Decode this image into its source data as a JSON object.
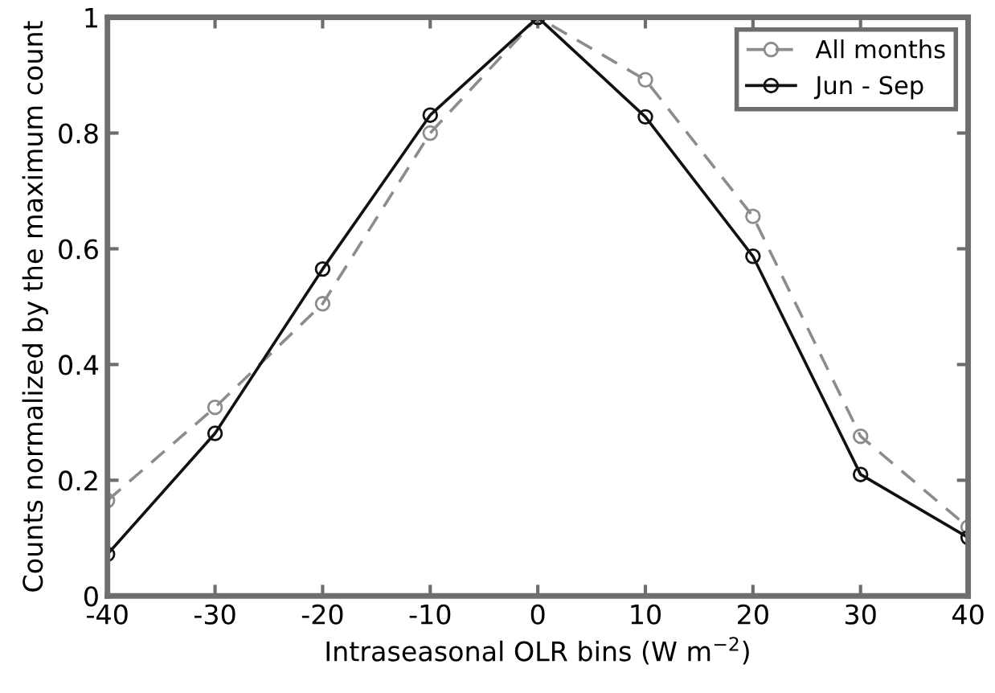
{
  "chart_data": {
    "type": "line",
    "xlabel": "Intraseasonal OLR bins (W m$^{−2}$)",
    "ylabel": "Counts normalized by the maximum count",
    "x": [
      -40,
      -30,
      -20,
      -10,
      0,
      10,
      20,
      30,
      40
    ],
    "series": [
      {
        "name": "All months",
        "color": "#8c8c8c",
        "line_style": "dashed",
        "values": [
          0.165,
          0.326,
          0.505,
          0.8,
          1.0,
          0.892,
          0.656,
          0.276,
          0.119
        ]
      },
      {
        "name": "Jun - Sep",
        "color": "#111111",
        "line_style": "solid",
        "values": [
          0.072,
          0.281,
          0.565,
          0.831,
          1.0,
          0.828,
          0.587,
          0.21,
          0.101
        ]
      }
    ],
    "marker": "circle",
    "xlim": [
      -40,
      40
    ],
    "xticks": [
      -40,
      -30,
      -20,
      -10,
      0,
      10,
      20,
      30,
      40
    ],
    "ylim": [
      0,
      1
    ],
    "yticks": [
      0,
      0.2,
      0.4,
      0.6,
      0.8,
      1
    ],
    "grid": false,
    "legend": "top right"
  }
}
